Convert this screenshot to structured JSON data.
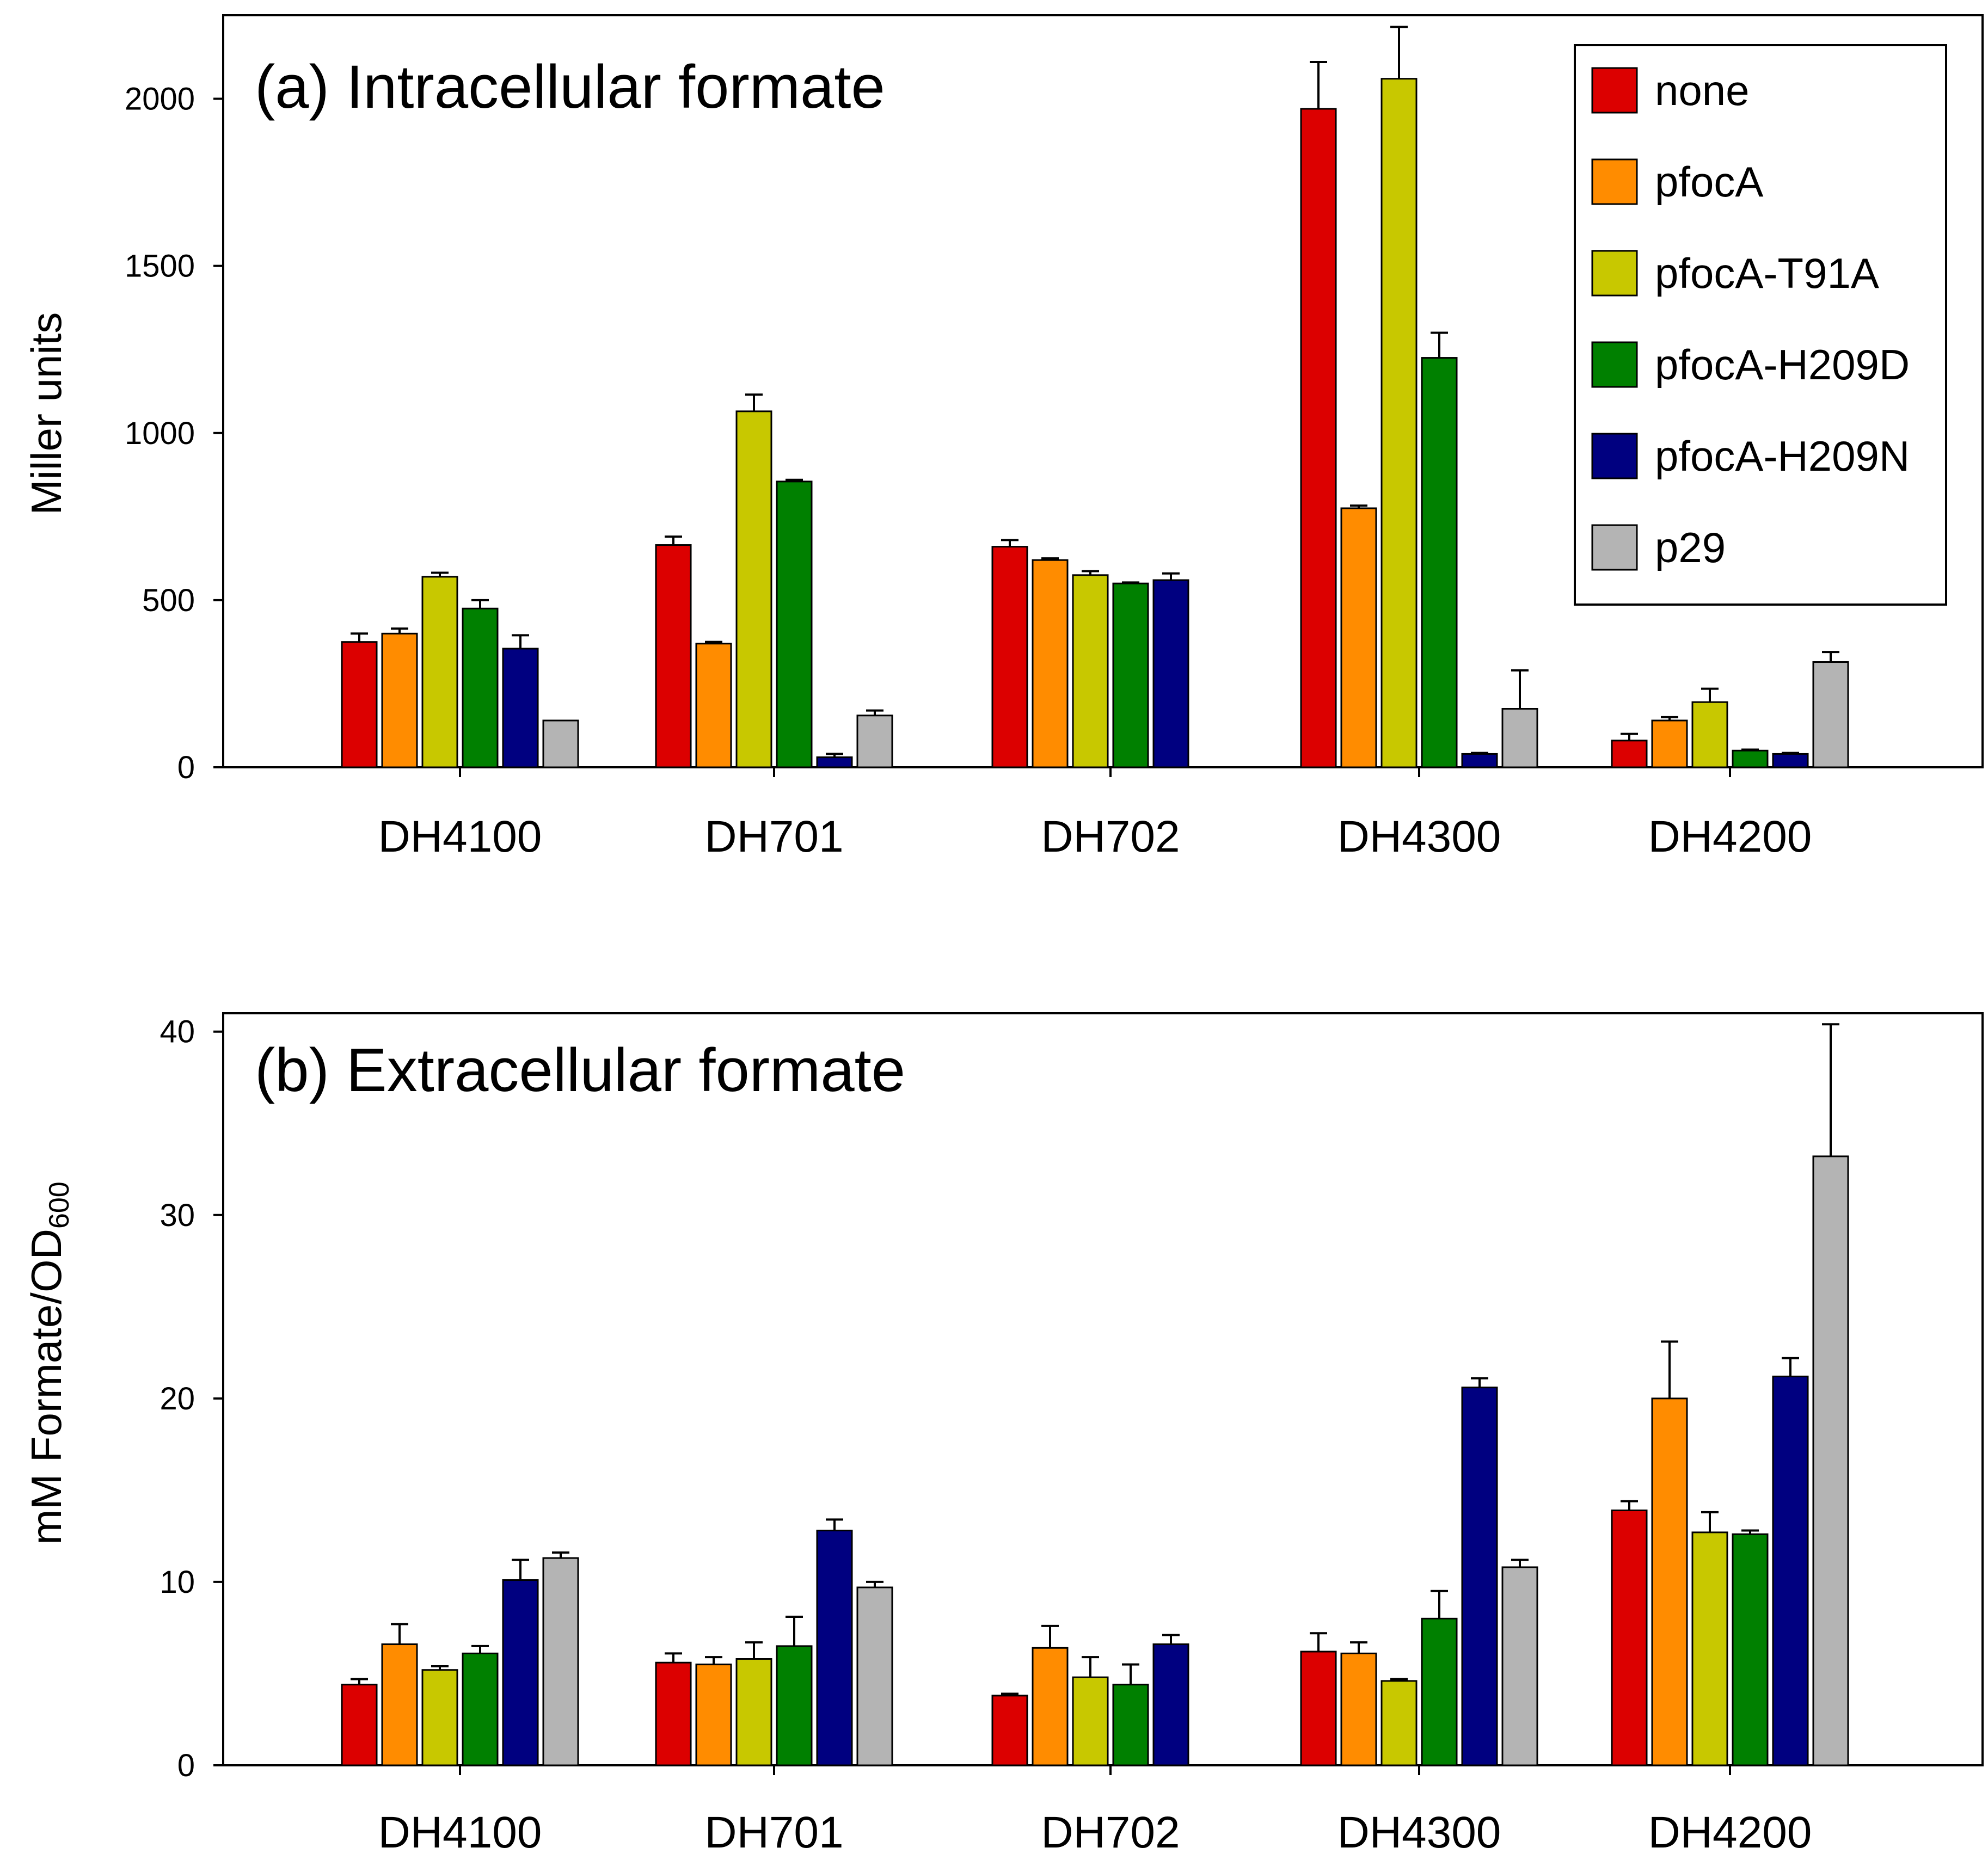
{
  "chart_data": [
    {
      "type": "bar",
      "title": "(a) Intracellular formate",
      "xlabel": "",
      "ylabel": "Miller units",
      "ylim": [
        0,
        2250
      ],
      "yticks": [
        0,
        500,
        1000,
        1500,
        2000
      ],
      "categories": [
        "DH4100",
        "DH701",
        "DH702",
        "DH4300",
        "DH4200"
      ],
      "legend_position": "top-right",
      "series": [
        {
          "name": "none",
          "values": [
            375,
            665,
            660,
            1970,
            80
          ],
          "errors": [
            25,
            25,
            20,
            140,
            20
          ]
        },
        {
          "name": "pfocA",
          "values": [
            400,
            370,
            620,
            775,
            140
          ],
          "errors": [
            15,
            5,
            5,
            8,
            10
          ]
        },
        {
          "name": "pfocA-T91A",
          "values": [
            570,
            1065,
            575,
            2060,
            195
          ],
          "errors": [
            12,
            50,
            12,
            155,
            40
          ]
        },
        {
          "name": "pfocA-H209D",
          "values": [
            475,
            855,
            550,
            1225,
            50
          ],
          "errors": [
            25,
            5,
            3,
            75,
            3
          ]
        },
        {
          "name": "pfocA-H209N",
          "values": [
            355,
            30,
            560,
            40,
            40
          ],
          "errors": [
            40,
            10,
            20,
            3,
            3
          ]
        },
        {
          "name": "p29",
          "values": [
            140,
            155,
            null,
            175,
            315
          ],
          "errors": [
            0,
            15,
            0,
            115,
            30
          ]
        }
      ]
    },
    {
      "type": "bar",
      "title": "(b) Extracellular formate",
      "xlabel": "",
      "ylabel_main": "mM Formate/OD",
      "ylabel_sub": "600",
      "ylim": [
        0,
        41
      ],
      "yticks": [
        0,
        10,
        20,
        30,
        40
      ],
      "categories": [
        "DH4100",
        "DH701",
        "DH702",
        "DH4300",
        "DH4200"
      ],
      "series": [
        {
          "name": "none",
          "values": [
            4.4,
            5.6,
            3.8,
            6.2,
            13.9
          ],
          "errors": [
            0.3,
            0.5,
            0.1,
            1.0,
            0.5
          ]
        },
        {
          "name": "pfocA",
          "values": [
            6.6,
            5.5,
            6.4,
            6.1,
            20.0
          ],
          "errors": [
            1.1,
            0.4,
            1.2,
            0.6,
            3.1
          ]
        },
        {
          "name": "pfocA-T91A",
          "values": [
            5.2,
            5.8,
            4.8,
            4.6,
            12.7
          ],
          "errors": [
            0.2,
            0.9,
            1.1,
            0.1,
            1.1
          ]
        },
        {
          "name": "pfocA-H209D",
          "values": [
            6.1,
            6.5,
            4.4,
            8.0,
            12.6
          ],
          "errors": [
            0.4,
            1.6,
            1.1,
            1.5,
            0.2
          ]
        },
        {
          "name": "pfocA-H209N",
          "values": [
            10.1,
            12.8,
            6.6,
            20.6,
            21.2
          ],
          "errors": [
            1.1,
            0.6,
            0.5,
            0.5,
            1.0
          ]
        },
        {
          "name": "p29",
          "values": [
            11.3,
            9.7,
            null,
            10.8,
            33.2
          ],
          "errors": [
            0.3,
            0.3,
            0,
            0.4,
            7.2
          ]
        }
      ]
    }
  ],
  "colors": {
    "none": "#dc0000",
    "pfocA": "#ff8c00",
    "pfocA-T91A": "#c8c800",
    "pfocA-H209D": "#008000",
    "pfocA-H209N": "#000080",
    "p29": "#b4b4b4"
  }
}
